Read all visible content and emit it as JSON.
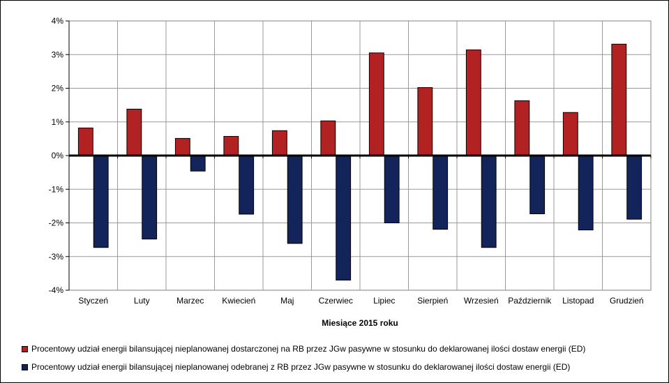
{
  "chart_data": {
    "type": "bar",
    "categories": [
      "Styczeń",
      "Luty",
      "Marzec",
      "Kwiecień",
      "Maj",
      "Czerwiec",
      "Lipiec",
      "Sierpień",
      "Wrzesień",
      "Październik",
      "Listopad",
      "Grudzień"
    ],
    "series": [
      {
        "name": "Procentowy udział energii bilansującej nieplanowanej dostarczonej na RB przez JGw pasywne w stosunku do deklarowanej ilości dostaw energii (ED)",
        "color": "#b22222",
        "values": [
          0.82,
          1.38,
          0.51,
          0.57,
          0.74,
          1.03,
          3.05,
          2.02,
          3.14,
          1.63,
          1.28,
          3.31
        ]
      },
      {
        "name": "Procentowy udział energii bilansującej nieplanowanej odebranej z RB przez JGw pasywne w stosunku do deklarowanej ilości dostaw energii (ED)",
        "color": "#13245a",
        "values": [
          -2.73,
          -2.48,
          -0.46,
          -1.74,
          -2.61,
          -3.7,
          -2.0,
          -2.19,
          -2.73,
          -1.73,
          -2.21,
          -1.89
        ]
      }
    ],
    "title": "",
    "xlabel": "Miesiące 2015  roku",
    "ylabel": "",
    "ylim": [
      -4,
      4
    ],
    "yticks": [
      "-4%",
      "-3%",
      "-2%",
      "-1%",
      "0%",
      "1%",
      "2%",
      "3%",
      "4%"
    ],
    "grid": true,
    "legend_position": "bottom"
  }
}
